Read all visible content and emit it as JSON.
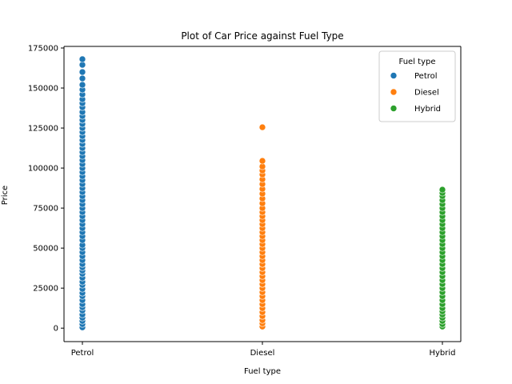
{
  "chart_data": {
    "type": "scatter",
    "title": "Plot of Car Price against Fuel Type",
    "xlabel": "Fuel type",
    "ylabel": "Price",
    "categories": [
      "Petrol",
      "Diesel",
      "Hybrid"
    ],
    "ylim": [
      -8400,
      176000
    ],
    "yticks": [
      0,
      25000,
      50000,
      75000,
      100000,
      125000,
      150000,
      175000
    ],
    "ytick_labels": [
      "0",
      "25000",
      "50000",
      "75000",
      "100000",
      "125000",
      "150000",
      "175000"
    ],
    "grid": false,
    "legend": {
      "title": "Fuel type",
      "placement": "top-right"
    },
    "series": [
      {
        "name": "Petrol",
        "color": "#1f77b4",
        "category": "Petrol",
        "values": [
          500,
          2500,
          4500,
          6500,
          8500,
          11000,
          13000,
          15000,
          17500,
          20000,
          22000,
          24500,
          27000,
          29000,
          31500,
          34000,
          36000,
          38000,
          40000,
          42500,
          45000,
          47500,
          50000,
          52000,
          55000,
          57500,
          60000,
          62500,
          65000,
          67500,
          70000,
          72500,
          75000,
          77500,
          80000,
          82500,
          85000,
          87500,
          90000,
          92500,
          95000,
          97500,
          100000,
          102500,
          105000,
          107500,
          110000,
          112500,
          115000,
          117500,
          120000,
          122500,
          125000,
          127500,
          130000,
          132500,
          135000,
          138000,
          140500,
          143000,
          146000,
          149000,
          152000,
          156000,
          160000,
          164500,
          168000
        ]
      },
      {
        "name": "Diesel",
        "color": "#ff7f0e",
        "category": "Diesel",
        "values": [
          1000,
          3000,
          5000,
          7500,
          10000,
          12500,
          15000,
          17500,
          20000,
          22500,
          25000,
          27500,
          30000,
          32500,
          35000,
          37500,
          40000,
          42500,
          45000,
          47500,
          50000,
          52500,
          55000,
          57500,
          60000,
          62500,
          65000,
          67500,
          70000,
          72500,
          75000,
          78000,
          81000,
          84000,
          87000,
          90000,
          93000,
          96000,
          98500,
          101000,
          104500,
          125500
        ]
      },
      {
        "name": "Hybrid",
        "color": "#2ca02c",
        "category": "Hybrid",
        "values": [
          1000,
          2500,
          4500,
          6500,
          8500,
          10500,
          12500,
          15000,
          17500,
          20000,
          22500,
          25000,
          27500,
          30000,
          32500,
          35000,
          37500,
          40000,
          42500,
          45000,
          47500,
          50000,
          52500,
          55000,
          57500,
          60000,
          62500,
          65000,
          67500,
          70000,
          72500,
          75000,
          77500,
          80000,
          82500,
          84500,
          86500
        ]
      }
    ]
  }
}
